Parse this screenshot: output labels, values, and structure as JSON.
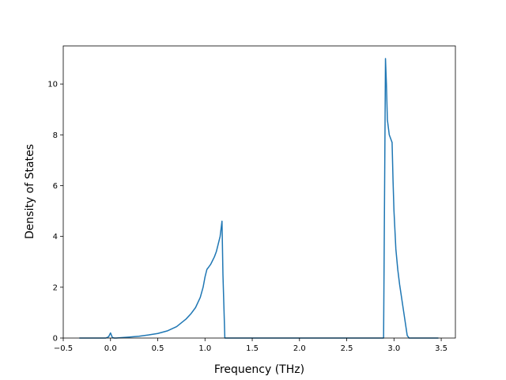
{
  "chart_data": {
    "type": "line",
    "title": "",
    "xlabel": "Frequency (THz)",
    "ylabel": "Density of States",
    "xlim": [
      -0.5,
      3.65
    ],
    "ylim": [
      0,
      11.5
    ],
    "xticks": [
      -0.5,
      0.0,
      0.5,
      1.0,
      1.5,
      2.0,
      2.5,
      3.0,
      3.5
    ],
    "xtick_labels": [
      "−0.5",
      "0.0",
      "0.5",
      "1.0",
      "1.5",
      "2.0",
      "2.5",
      "3.0",
      "3.5"
    ],
    "yticks": [
      0,
      2,
      4,
      6,
      8,
      10
    ],
    "ytick_labels": [
      "0",
      "2",
      "4",
      "6",
      "8",
      "10"
    ],
    "grid": false,
    "series_color": "#1f77b4",
    "series": [
      {
        "x": [
          -0.33,
          -0.05,
          -0.02,
          0.0,
          0.02,
          0.04,
          0.06,
          0.1,
          0.2,
          0.3,
          0.4,
          0.5,
          0.6,
          0.7,
          0.8,
          0.85,
          0.9,
          0.95,
          0.98,
          1.0,
          1.02,
          1.04,
          1.06,
          1.08,
          1.1,
          1.12,
          1.14,
          1.16,
          1.18,
          1.19,
          1.21,
          1.5,
          2.0,
          2.5,
          2.89,
          2.91,
          2.92,
          2.93,
          2.95,
          2.97,
          2.98,
          2.99,
          3.0,
          3.02,
          3.04,
          3.06,
          3.08,
          3.1,
          3.12,
          3.14,
          3.16,
          3.3,
          3.47
        ],
        "y": [
          0,
          0,
          0.05,
          0.2,
          0.02,
          0.0,
          0.0,
          0.01,
          0.04,
          0.07,
          0.12,
          0.18,
          0.28,
          0.45,
          0.75,
          0.95,
          1.2,
          1.6,
          2.0,
          2.4,
          2.7,
          2.8,
          2.9,
          3.05,
          3.2,
          3.4,
          3.7,
          4.0,
          4.6,
          2.5,
          0,
          0,
          0,
          0,
          0,
          11.0,
          10.0,
          8.6,
          8.0,
          7.8,
          7.7,
          6.2,
          5.0,
          3.5,
          2.7,
          2.1,
          1.6,
          1.1,
          0.6,
          0.1,
          0,
          0,
          0
        ]
      }
    ]
  }
}
